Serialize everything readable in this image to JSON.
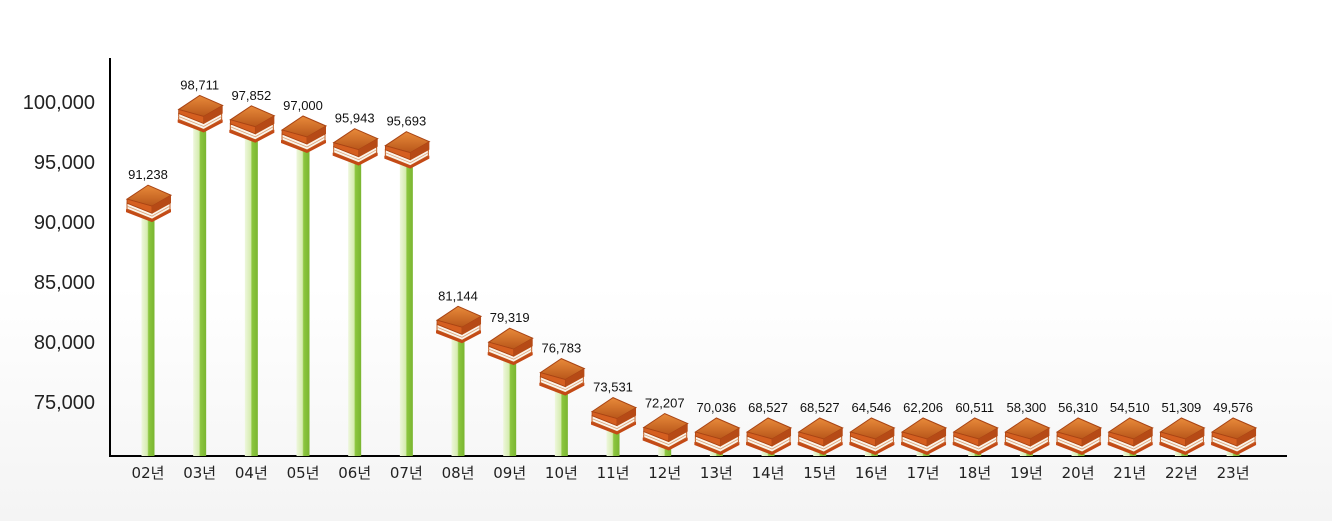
{
  "chart_data": {
    "type": "bar",
    "title": "",
    "xlabel": "",
    "ylabel": "",
    "ylim": [
      70000,
      105000
    ],
    "yticks": [
      "100,000",
      "95,000",
      "90,000",
      "85,000",
      "80,000",
      "75,000"
    ],
    "categories": [
      "02년",
      "03년",
      "04년",
      "05년",
      "06년",
      "07년",
      "08년",
      "09년",
      "10년",
      "11년",
      "12년",
      "13년",
      "14년",
      "15년",
      "16년",
      "17년",
      "18년",
      "19년",
      "20년",
      "21년",
      "22년",
      "23년"
    ],
    "values": [
      91238,
      98711,
      97852,
      97000,
      95943,
      95693,
      81144,
      79319,
      76783,
      73531,
      72207,
      70036,
      68527,
      68527,
      64546,
      62206,
      60511,
      58300,
      56310,
      54510,
      51309,
      49576
    ],
    "value_labels": [
      "91,238",
      "98,711",
      "97,852",
      "97,000",
      "95,943",
      "95,693",
      "81,144",
      "79,319",
      "76,783",
      "73,531",
      "72,207",
      "70,036",
      "68,527",
      "68,527",
      "64,546",
      "62,206",
      "60,511",
      "58,300",
      "56,310",
      "54,510",
      "51,309",
      "49,576"
    ],
    "marker_icon": "book-stack-icon",
    "bar_color": "#8cc63f",
    "book_color": "#d2691e",
    "grid": false
  }
}
